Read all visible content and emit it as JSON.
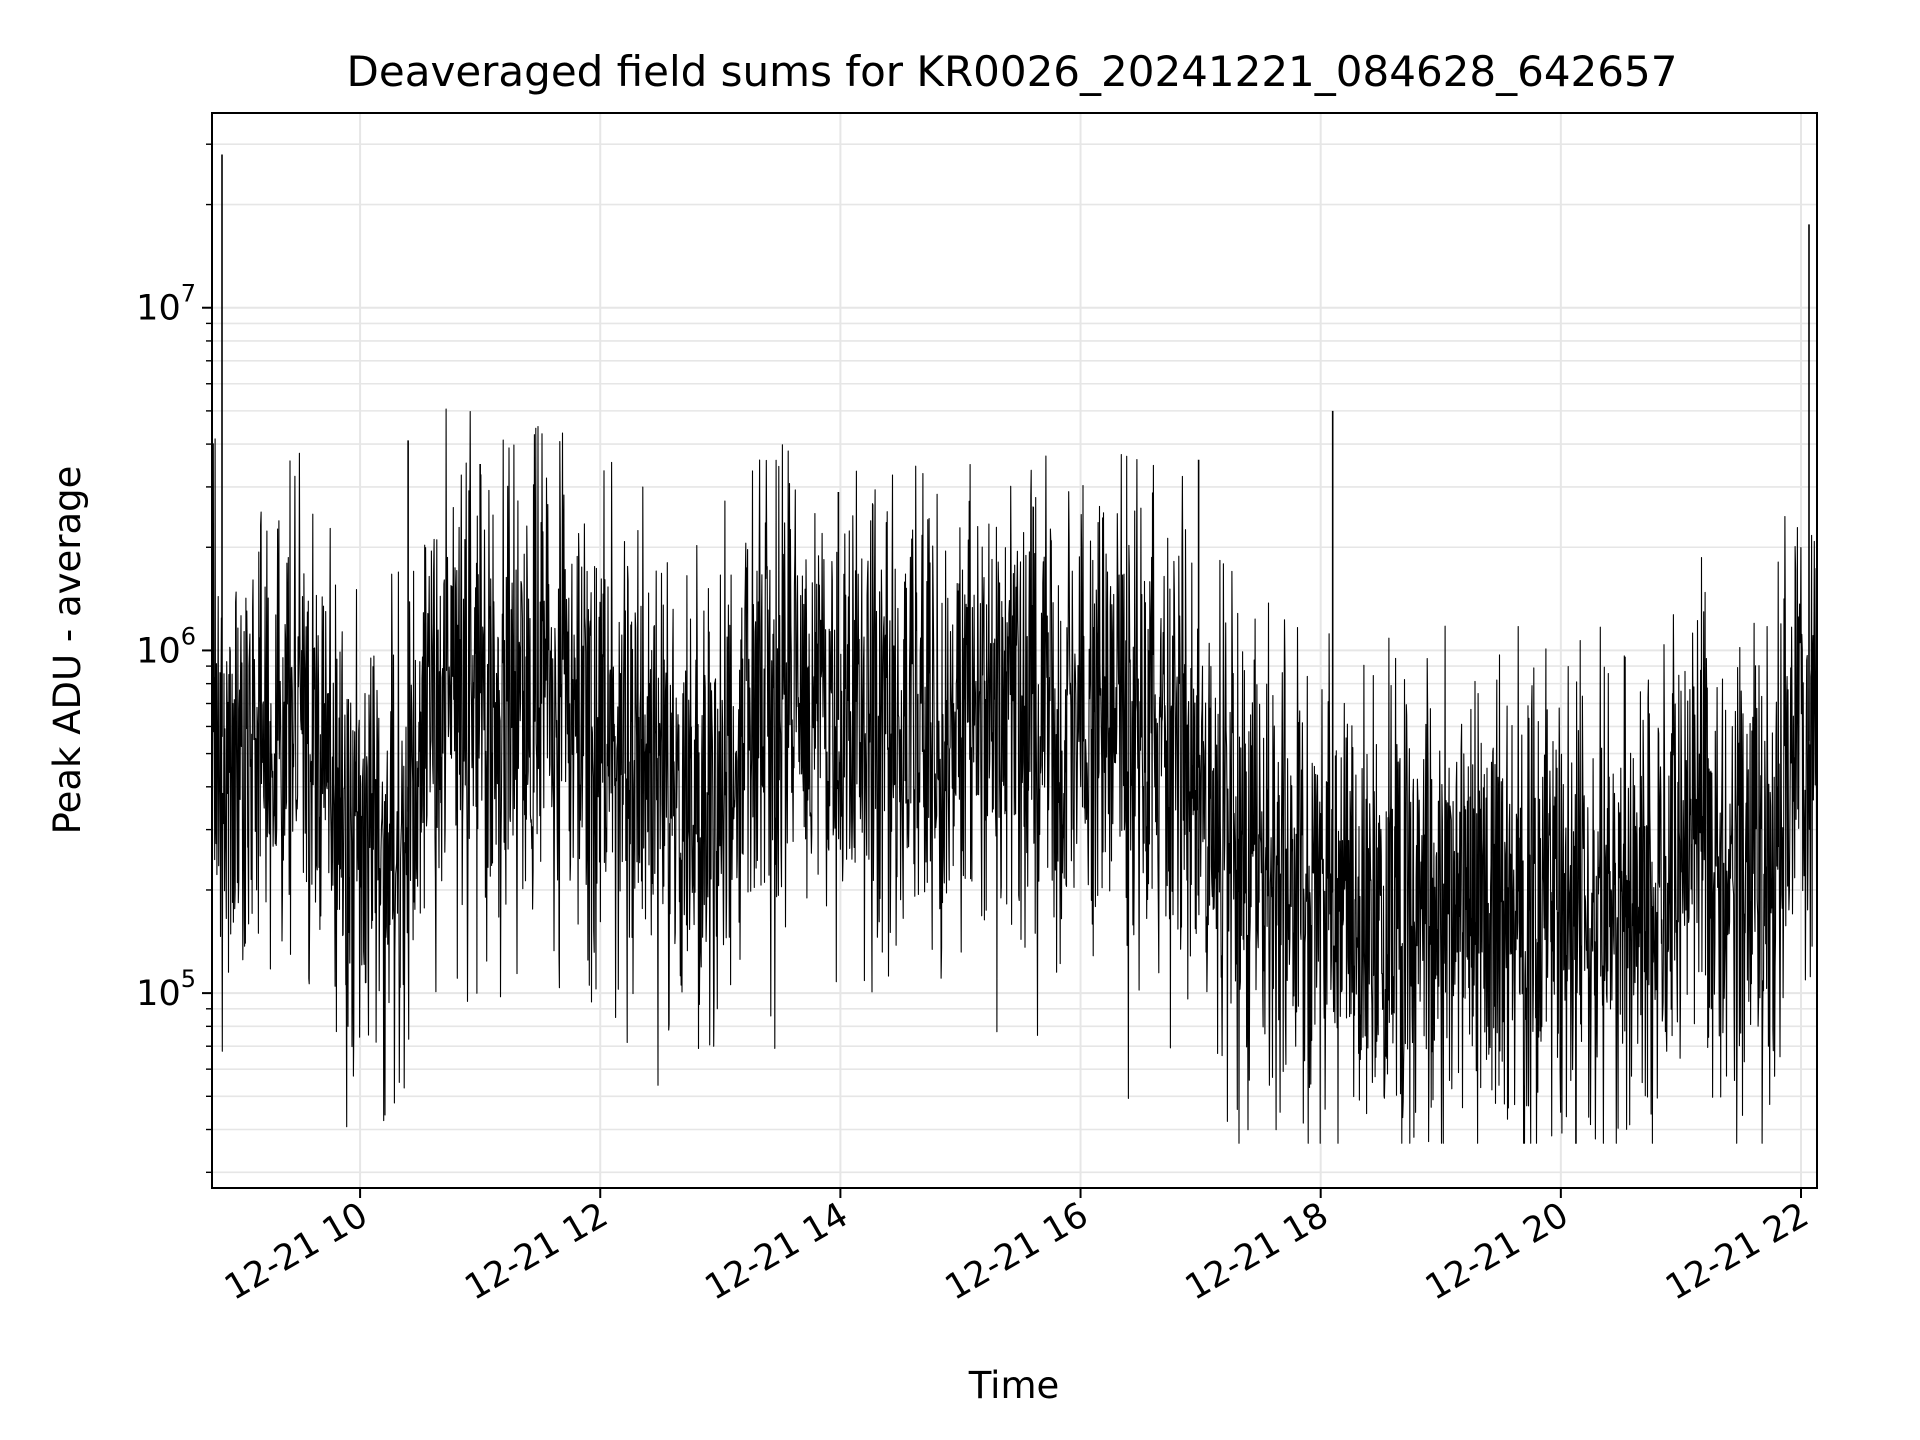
{
  "chart_data": {
    "type": "line",
    "title": "Deaveraged field sums for KR0026_20241221_084628_642657",
    "xlabel": "Time",
    "ylabel": "Peak ADU - average",
    "yscale": "log",
    "xlim": [
      "2024-12-21 08:46",
      "2024-12-21 22:08"
    ],
    "ylim": [
      27000,
      37000000
    ],
    "grid": true,
    "line_color": "#000000",
    "grid_color": "#e6e6e6",
    "x_ticks": [
      {
        "time": "2024-12-21 10:00",
        "label": "12-21 10"
      },
      {
        "time": "2024-12-21 12:00",
        "label": "12-21 12"
      },
      {
        "time": "2024-12-21 14:00",
        "label": "12-21 14"
      },
      {
        "time": "2024-12-21 16:00",
        "label": "12-21 16"
      },
      {
        "time": "2024-12-21 18:00",
        "label": "12-21 18"
      },
      {
        "time": "2024-12-21 20:00",
        "label": "12-21 20"
      },
      {
        "time": "2024-12-21 22:00",
        "label": "12-21 22"
      }
    ],
    "y_ticks": [
      {
        "value": 100000,
        "base": "10",
        "exp": "5"
      },
      {
        "value": 1000000,
        "base": "10",
        "exp": "6"
      },
      {
        "value": 10000000,
        "base": "10",
        "exp": "7"
      }
    ],
    "series": [
      {
        "x": [
          "2024-12-21 08:46",
          "2024-12-21 08:50",
          "2024-12-21 08:55",
          "2024-12-21 09:00",
          "2024-12-21 09:10",
          "2024-12-21 09:20",
          "2024-12-21 09:30",
          "2024-12-21 09:38",
          "2024-12-21 09:45",
          "2024-12-21 09:55",
          "2024-12-21 10:05",
          "2024-12-21 10:15",
          "2024-12-21 10:25",
          "2024-12-21 10:35",
          "2024-12-21 10:45",
          "2024-12-21 11:00",
          "2024-12-21 11:15",
          "2024-12-21 11:30",
          "2024-12-21 11:45",
          "2024-12-21 12:00",
          "2024-12-21 12:15",
          "2024-12-21 12:30",
          "2024-12-21 12:45",
          "2024-12-21 12:55",
          "2024-12-21 13:10",
          "2024-12-21 13:30",
          "2024-12-21 13:50",
          "2024-12-21 14:10",
          "2024-12-21 14:30",
          "2024-12-21 14:50",
          "2024-12-21 15:10",
          "2024-12-21 15:30",
          "2024-12-21 15:50",
          "2024-12-21 16:10",
          "2024-12-21 16:30",
          "2024-12-21 16:50",
          "2024-12-21 17:00",
          "2024-12-21 17:10",
          "2024-12-21 17:30",
          "2024-12-21 17:50",
          "2024-12-21 18:05",
          "2024-12-21 18:20",
          "2024-12-21 18:40",
          "2024-12-21 19:00",
          "2024-12-21 19:20",
          "2024-12-21 19:40",
          "2024-12-21 20:00",
          "2024-12-21 20:20",
          "2024-12-21 20:40",
          "2024-12-21 20:55",
          "2024-12-21 21:05",
          "2024-12-21 21:20",
          "2024-12-21 21:35",
          "2024-12-21 21:45",
          "2024-12-21 21:55",
          "2024-12-21 22:05"
        ],
        "values": [
          700000,
          550000,
          600000,
          500000,
          550000,
          600000,
          650000,
          500000,
          350000,
          230000,
          280000,
          250000,
          350000,
          700000,
          800000,
          750000,
          600000,
          700000,
          650000,
          600000,
          550000,
          450000,
          350000,
          300000,
          600000,
          700000,
          650000,
          600000,
          550000,
          500000,
          550000,
          600000,
          550000,
          600000,
          550000,
          500000,
          450000,
          280000,
          220000,
          180000,
          200000,
          160000,
          170000,
          180000,
          190000,
          180000,
          170000,
          180000,
          170000,
          180000,
          350000,
          250000,
          200000,
          200000,
          500000,
          550000
        ]
      }
    ],
    "spikes": [
      {
        "time": "2024-12-21 08:51",
        "value": 28000000
      },
      {
        "time": "2024-12-21 10:24",
        "value": 4100000
      },
      {
        "time": "2024-12-21 11:00",
        "value": 3500000
      },
      {
        "time": "2024-12-21 13:59",
        "value": 2900000
      },
      {
        "time": "2024-12-21 16:59",
        "value": 3600000
      },
      {
        "time": "2024-12-21 18:06",
        "value": 5000000
      },
      {
        "time": "2024-12-21 22:04",
        "value": 17500000
      }
    ]
  }
}
